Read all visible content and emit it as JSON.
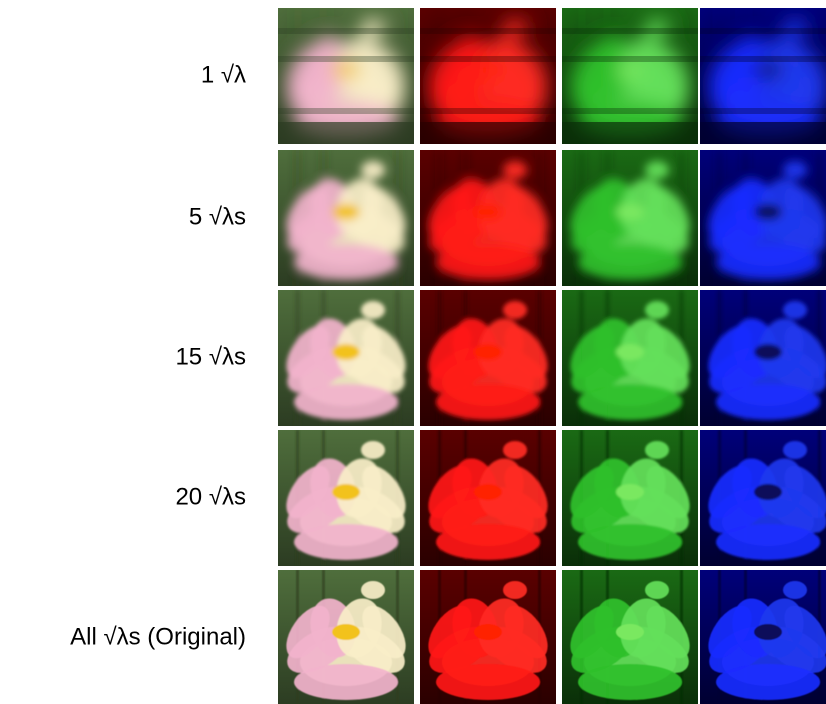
{
  "rows": [
    {
      "label": "1 √λ"
    },
    {
      "label": "5 √λs"
    },
    {
      "label": "15 √λs"
    },
    {
      "label": "20 √λs"
    },
    {
      "label": "All √λs (Original)"
    }
  ]
}
